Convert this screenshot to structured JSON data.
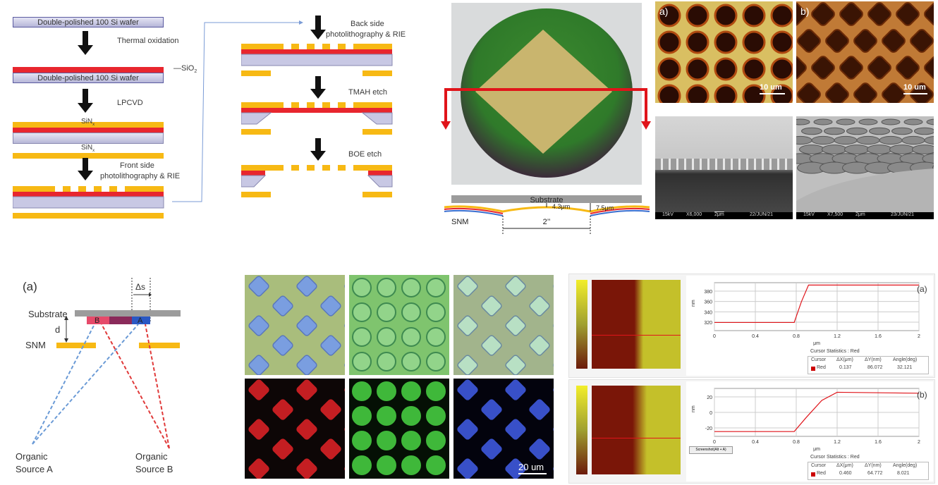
{
  "flow": {
    "wafer_label": "Double-polished 100 Si wafer",
    "thermal_oxidation": "Thermal oxidation",
    "sio2": "SiO",
    "sio2_sub": "2",
    "lpcvd": "LPCVD",
    "sinx": "SiN",
    "sinx_sub": "x",
    "front_side": "Front side",
    "front_side_2": "photolithography & RIE",
    "back_side": "Back side",
    "back_side_2": "photolithography & RIE",
    "tmah": "TMAH etch",
    "boe": "BOE etch"
  },
  "wafer_diagram": {
    "substrate": "Substrate",
    "snm": "SNM",
    "gap1": "4.3μm",
    "gap2": "7.5μm",
    "diameter": "2’’"
  },
  "micrographs": {
    "a_label": "a)",
    "b_label": "b)",
    "scale_a": "10 um",
    "scale_b": "10 um",
    "sem1_kv": "15kV",
    "sem1_mag": "X6,000",
    "sem1_scale": "2μm",
    "sem1_date": "22/JUN/21",
    "sem2_kv": "15kV",
    "sem2_mag": "X7,500",
    "sem2_scale": "2μm",
    "sem2_date": "23/JUN/21"
  },
  "deposition": {
    "panel": "(a)",
    "delta_s": "Δs",
    "substrate": "Substrate",
    "d": "d",
    "snm": "SNM",
    "b": "B",
    "a": "A",
    "source_a_1": "Organic",
    "source_a_2": "Source A",
    "source_b_1": "Organic",
    "source_b_2": "Source B"
  },
  "fluorescence": {
    "scale": "20 um"
  },
  "afm": {
    "panel_a": "(a)",
    "panel_b": "(b)",
    "ylabel": "nm",
    "xlabel": "μm",
    "xticks": [
      "0",
      "0.4",
      "0.8",
      "1.2",
      "1.6",
      "2"
    ],
    "yticks_a": [
      "380",
      "360",
      "340",
      "320"
    ],
    "yticks_b": [
      "20",
      "0",
      "-20"
    ],
    "cursor_title": "Cursor Statistics : Red",
    "headers": [
      "Cursor",
      "ΔX(μm)",
      "ΔY(nm)",
      "Angle(deg)"
    ],
    "row_a": [
      "Red",
      "0.137",
      "86.072",
      "32.121"
    ],
    "row_b": [
      "Red",
      "0.460",
      "64.772",
      "8.021"
    ],
    "screenshot_btn": "Screenshot(Alt + A)"
  },
  "colors": {
    "red_layer": "#e8262e",
    "sin_layer": "#f7b914",
    "si_layer": "#c8c8e4",
    "arrow_red": "#e0141a"
  }
}
